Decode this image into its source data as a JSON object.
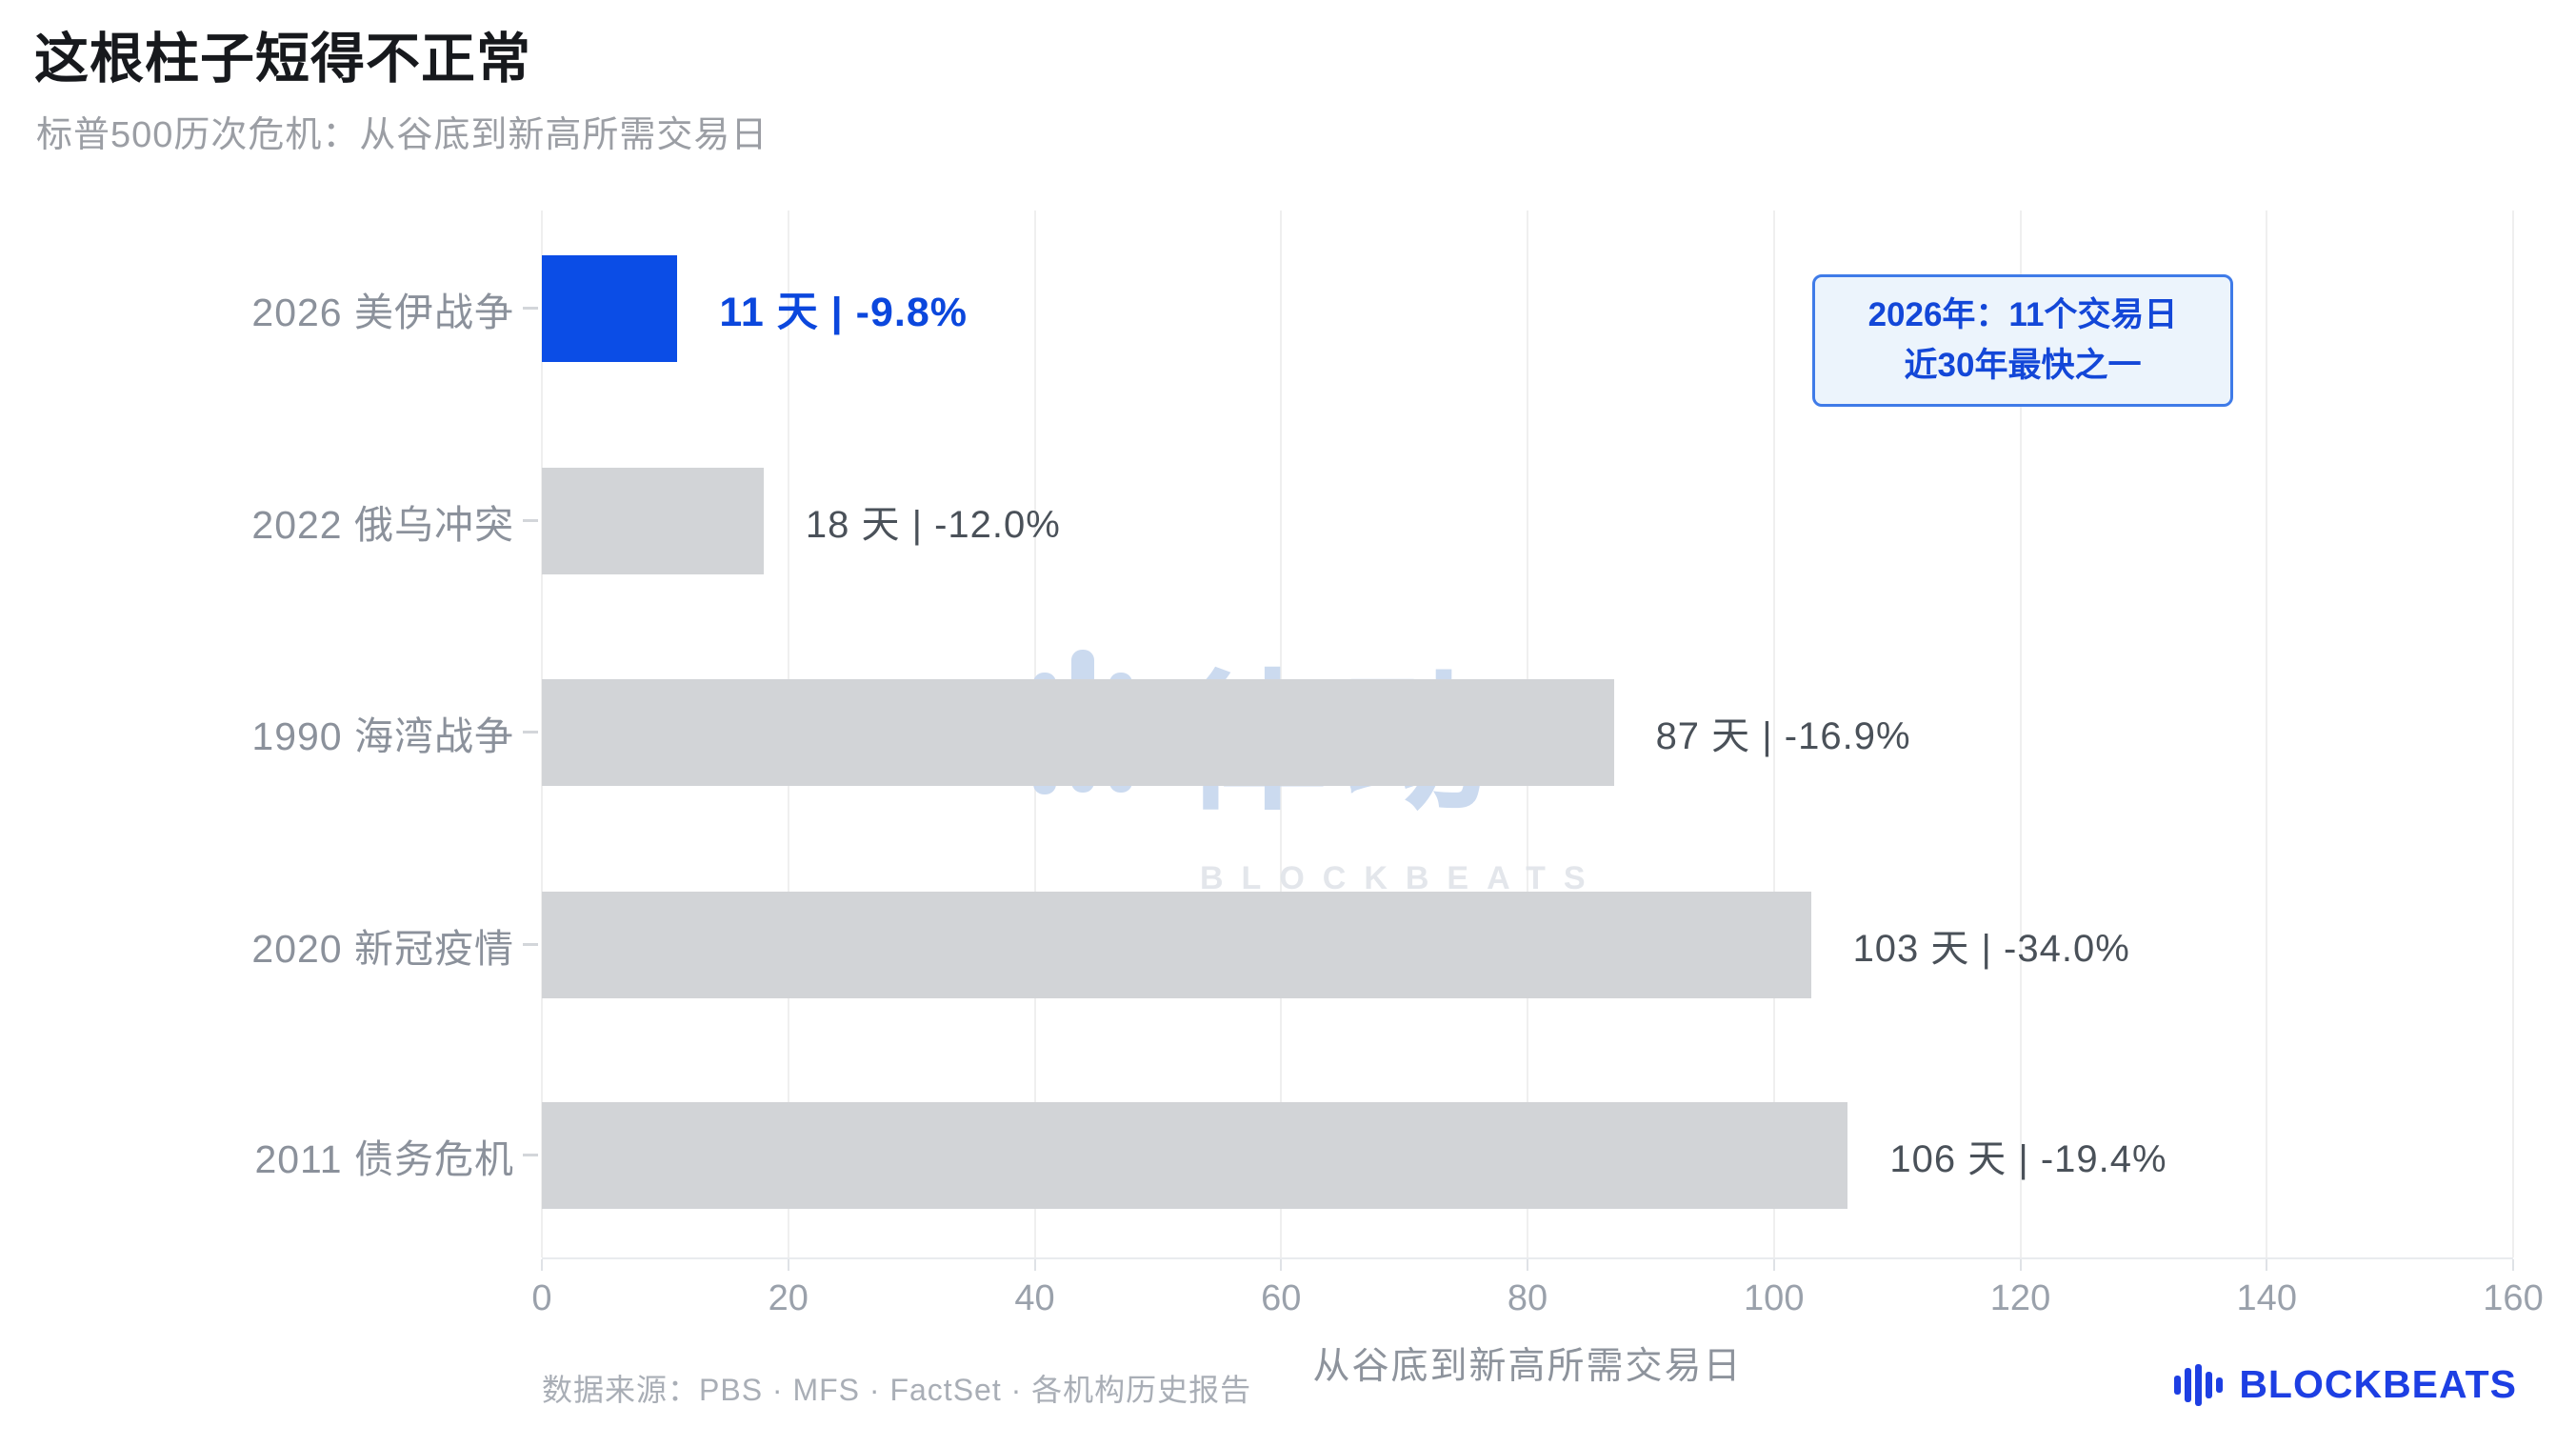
{
  "chart_data": {
    "type": "bar",
    "orientation": "horizontal",
    "title": "这根柱子短得不正常",
    "subtitle": "标普500历次危机：从谷底到新高所需交易日",
    "categories": [
      "2026 美伊战争",
      "2022 俄乌冲突",
      "1990 海湾战争",
      "2020 新冠疫情",
      "2011 债务危机"
    ],
    "values": [
      11,
      18,
      87,
      103,
      106
    ],
    "drawdowns_pct": [
      -9.8,
      -12.0,
      -16.9,
      -34.0,
      -19.4
    ],
    "value_labels": [
      "11 天 | -9.8%",
      "18 天 | -12.0%",
      "87 天 | -16.9%",
      "103 天 | -34.0%",
      "106 天 | -19.4%"
    ],
    "xlabel": "从谷底到新高所需交易日",
    "xlim": [
      0,
      160
    ],
    "xticks": [
      0,
      20,
      40,
      60,
      80,
      100,
      120,
      140,
      160
    ],
    "grid": true,
    "legend": false,
    "highlight_index": 0,
    "colors": {
      "highlight": "#0b4de6",
      "highlight_text": "#0b47dd",
      "default": "#d2d4d7",
      "gridline": "#efefef"
    }
  },
  "annotation": {
    "line1": "2026年：11个交易日",
    "line2": "近30年最快之一",
    "color": "#1347d8",
    "border_color": "#3f7be8",
    "bg": "#ecf4fc"
  },
  "watermark": {
    "text": "律动",
    "subtext": "BLOCKBEATS"
  },
  "footer": {
    "source": "数据来源：PBS · MFS · FactSet · 各机构历史报告",
    "brand": "BLOCKBEATS",
    "brand_color": "#1d3fe3"
  }
}
